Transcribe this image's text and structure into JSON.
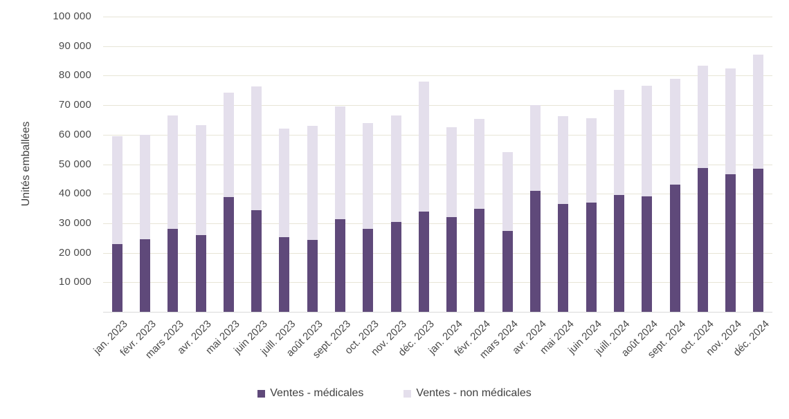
{
  "chart_data": {
    "type": "bar",
    "stacked": true,
    "title": "",
    "xlabel": "",
    "ylabel": "Unités emballées",
    "ylim": [
      0,
      100000
    ],
    "grid": true,
    "legend_position": "bottom",
    "y_ticks": [
      "10 000",
      "20 000",
      "30 000",
      "40 000",
      "50 000",
      "60 000",
      "70 000",
      "80 000",
      "90 000",
      "100 000"
    ],
    "categories": [
      "jan. 2023",
      "févr. 2023",
      "mars 2023",
      "avr. 2023",
      "mai 2023",
      "juin 2023",
      "juill. 2023",
      "août 2023",
      "sept. 2023",
      "oct. 2023",
      "nov. 2023",
      "déc. 2023",
      "jan. 2024",
      "févr. 2024",
      "mars 2024",
      "avr. 2024",
      "mai 2024",
      "juin 2024",
      "juill. 2024",
      "août 2024",
      "sept. 2024",
      "oct. 2024",
      "nov. 2024",
      "déc. 2024"
    ],
    "series": [
      {
        "name": "Ventes - médicales",
        "color": "#5f497a",
        "values": [
          23000,
          24500,
          28000,
          26000,
          38800,
          34500,
          25300,
          24300,
          31300,
          28000,
          30500,
          34000,
          32000,
          35000,
          27500,
          41000,
          36500,
          37000,
          39500,
          39200,
          43000,
          48700,
          46500,
          48500
        ]
      },
      {
        "name": "Ventes - non médicales",
        "color": "#e4dfec",
        "values": [
          36500,
          35500,
          38500,
          37200,
          35500,
          41800,
          36700,
          38700,
          38200,
          36000,
          36000,
          44000,
          30500,
          30300,
          26500,
          29000,
          29700,
          28600,
          35600,
          37300,
          36000,
          34700,
          36000,
          38700
        ]
      }
    ],
    "colors": {
      "gridline": "#e7e5d6",
      "axis_line": "#d9d9d9",
      "tick_text": "#4a4a4a",
      "label_text": "#3f3f3f",
      "background": "#ffffff"
    }
  },
  "legend": {
    "items": [
      {
        "label": "Ventes - médicales"
      },
      {
        "label": "Ventes - non médicales"
      }
    ]
  }
}
